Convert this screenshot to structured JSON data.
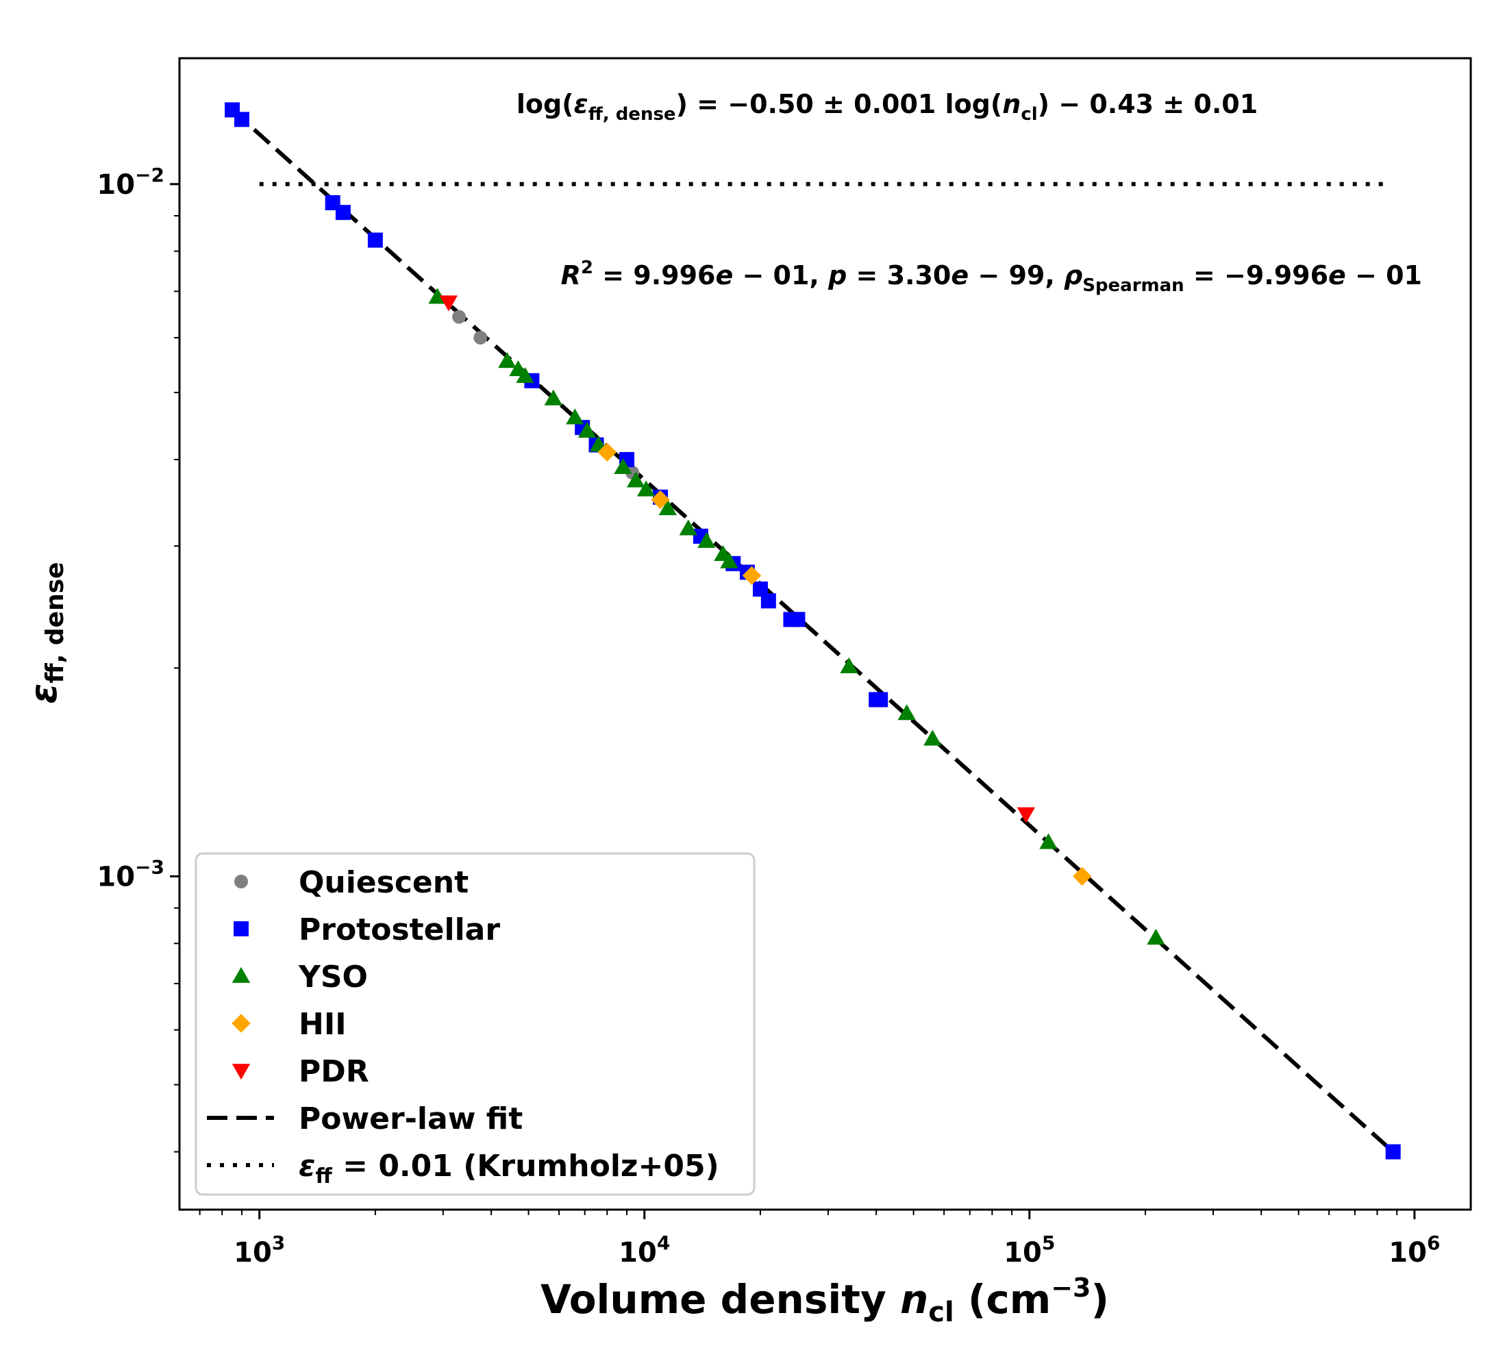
{
  "chart_data": {
    "type": "scatter",
    "xscale": "log",
    "yscale": "log",
    "xlim": [
      620,
      1400000
    ],
    "ylim": [
      0.00033,
      0.0152
    ],
    "xlabel": "Volume density n_cl (cm^-3)",
    "ylabel": "ε_ff, dense",
    "x_ticks": [
      1000,
      10000,
      100000,
      1000000
    ],
    "x_tick_labels": [
      "10^3",
      "10^4",
      "10^5",
      "10^6"
    ],
    "y_ticks": [
      0.001,
      0.01
    ],
    "y_tick_labels": [
      "10^-3",
      "10^-2"
    ],
    "grid": false,
    "legend_position": "lower-left",
    "annotations": {
      "fit_equation": "log(ε_ff, dense) = −0.50 ± 0.001 log(n_cl) − 0.43 ± 0.01",
      "fit_stats": "R^2 = 9.996e−01, p = 3.30e−99, ρ_Spearman = −9.996e−01"
    },
    "series": [
      {
        "name": "Quiescent",
        "marker": "circle",
        "color": "#808080",
        "points": [
          [
            3300,
            0.00643
          ],
          [
            3750,
            0.006
          ],
          [
            9300,
            0.00383
          ]
        ]
      },
      {
        "name": "Protostellar",
        "marker": "square",
        "color": "#0000ff",
        "points": [
          [
            850,
            0.0128
          ],
          [
            900,
            0.0124
          ],
          [
            1550,
            0.0094
          ],
          [
            1650,
            0.0091
          ],
          [
            2000,
            0.0083
          ],
          [
            5100,
            0.0052
          ],
          [
            6900,
            0.00445
          ],
          [
            7500,
            0.0042
          ],
          [
            9000,
            0.004
          ],
          [
            11000,
            0.00353
          ],
          [
            14000,
            0.0031
          ],
          [
            17000,
            0.00283
          ],
          [
            18500,
            0.00275
          ],
          [
            20000,
            0.0026
          ],
          [
            21000,
            0.0025
          ],
          [
            24000,
            0.00235
          ],
          [
            25000,
            0.00235
          ],
          [
            40000,
            0.0018
          ],
          [
            41000,
            0.0018
          ],
          [
            880000,
            0.0004
          ]
        ]
      },
      {
        "name": "YSO",
        "marker": "triangle-up",
        "color": "#008000",
        "points": [
          [
            2900,
            0.00687
          ],
          [
            4400,
            0.00555
          ],
          [
            4700,
            0.0054
          ],
          [
            4900,
            0.00528
          ],
          [
            5800,
            0.0049
          ],
          [
            6600,
            0.0046
          ],
          [
            7100,
            0.0044
          ],
          [
            7600,
            0.0042
          ],
          [
            8800,
            0.0039
          ],
          [
            9500,
            0.00373
          ],
          [
            10100,
            0.00362
          ],
          [
            11500,
            0.0034
          ],
          [
            13000,
            0.00318
          ],
          [
            14500,
            0.00305
          ],
          [
            16000,
            0.00292
          ],
          [
            16600,
            0.00285
          ],
          [
            34000,
            0.00201
          ],
          [
            48000,
            0.00172
          ],
          [
            56000,
            0.00158
          ],
          [
            112000,
            0.00112
          ],
          [
            213000,
            0.000815
          ]
        ]
      },
      {
        "name": "HII",
        "marker": "diamond",
        "color": "#ffa500",
        "points": [
          [
            8000,
            0.0041
          ],
          [
            11000,
            0.0035
          ],
          [
            19000,
            0.00272
          ],
          [
            137000,
            0.001
          ]
        ]
      },
      {
        "name": "PDR",
        "marker": "triangle-down",
        "color": "#ff0000",
        "points": [
          [
            3100,
            0.00675
          ],
          [
            98000,
            0.00123
          ]
        ]
      }
    ],
    "lines": [
      {
        "name": "Power-law fit",
        "style": "dashed",
        "color": "#000000",
        "x": [
          850,
          880000
        ],
        "y": [
          0.0128,
          0.0004
        ]
      },
      {
        "name": "ε_ff = 0.01 (Krumholz+05)",
        "style": "dotted",
        "color": "#000000",
        "x": [
          1000,
          870000
        ],
        "y": [
          0.01,
          0.01
        ]
      }
    ]
  }
}
